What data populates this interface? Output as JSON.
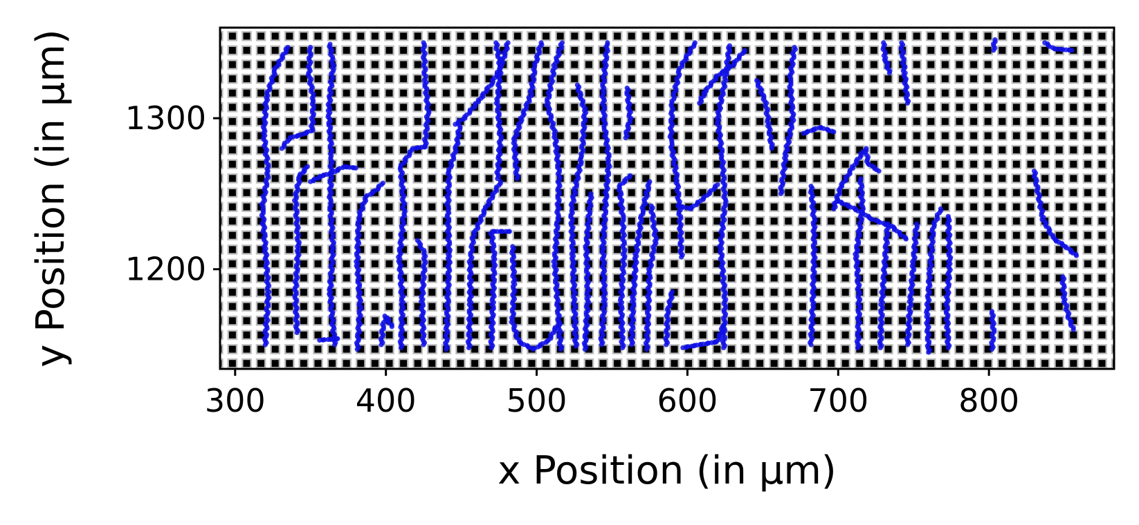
{
  "chart_data": {
    "type": "scatter",
    "xlabel": "x Position (in μm)",
    "ylabel": "y Position (in μm)",
    "xlim": [
      290,
      883
    ],
    "ylim": [
      1134,
      1360
    ],
    "xticks": [
      300,
      400,
      500,
      600,
      700,
      800
    ],
    "yticks": [
      1200,
      1300
    ],
    "grid": false,
    "background": "regular square pillar lattice image (black squares on white, ~10 μm pitch)",
    "marker_color": "#1010e6",
    "frame_color": "#000000",
    "series": [
      {
        "trajectories": [
          [
            [
              320,
              1150
            ],
            [
              322,
              1185
            ],
            [
              320,
              1215
            ],
            [
              318,
              1240
            ],
            [
              322,
              1265
            ],
            [
              319,
              1290
            ],
            [
              321,
              1315
            ],
            [
              327,
              1333
            ],
            [
              335,
              1347
            ]
          ],
          [
            [
              341,
              1158
            ],
            [
              340,
              1185
            ],
            [
              342,
              1215
            ],
            [
              340,
              1247
            ],
            [
              343,
              1262
            ],
            [
              348,
              1268
            ]
          ],
          [
            [
              331,
              1280
            ],
            [
              336,
              1287
            ],
            [
              344,
              1289
            ],
            [
              351,
              1292
            ],
            [
              352,
              1312
            ],
            [
              349,
              1330
            ],
            [
              350,
              1347
            ]
          ],
          [
            [
              366,
              1150
            ],
            [
              363,
              1185
            ],
            [
              365,
              1215
            ],
            [
              363,
              1245
            ],
            [
              364,
              1275
            ],
            [
              362,
              1305
            ],
            [
              365,
              1335
            ],
            [
              363,
              1349
            ]
          ],
          [
            [
              356,
              1153
            ],
            [
              368,
              1154
            ]
          ],
          [
            [
              350,
              1258
            ],
            [
              358,
              1262
            ],
            [
              365,
              1264
            ],
            [
              372,
              1268
            ],
            [
              380,
              1267
            ]
          ],
          [
            [
              381,
              1147
            ],
            [
              383,
              1175
            ],
            [
              381,
              1205
            ],
            [
              382,
              1235
            ],
            [
              387,
              1248
            ],
            [
              393,
              1252
            ],
            [
              398,
              1257
            ]
          ],
          [
            [
              397,
              1150
            ],
            [
              398,
              1162
            ],
            [
              400,
              1169
            ],
            [
              404,
              1162
            ]
          ],
          [
            [
              410,
              1148
            ],
            [
              411,
              1178
            ],
            [
              409,
              1208
            ],
            [
              412,
              1238
            ],
            [
              410,
              1268
            ],
            [
              418,
              1280
            ],
            [
              426,
              1281
            ]
          ],
          [
            [
              425,
              1150
            ],
            [
              424,
              1180
            ],
            [
              426,
              1210
            ],
            [
              421,
              1219
            ]
          ],
          [
            [
              426,
              1282
            ],
            [
              428,
              1305
            ],
            [
              426,
              1325
            ],
            [
              425,
              1350
            ]
          ],
          [
            [
              440,
              1147
            ],
            [
              441,
              1180
            ],
            [
              442,
              1210
            ],
            [
              441,
              1240
            ],
            [
              442,
              1265
            ],
            [
              447,
              1282
            ],
            [
              449,
              1295
            ]
          ],
          [
            [
              455,
              1148
            ],
            [
              456,
              1178
            ],
            [
              456,
              1205
            ],
            [
              458,
              1222
            ],
            [
              466,
              1240
            ],
            [
              476,
              1258
            ]
          ],
          [
            [
              446,
              1296
            ],
            [
              452,
              1300
            ],
            [
              462,
              1312
            ],
            [
              470,
              1323
            ],
            [
              476,
              1333
            ],
            [
              481,
              1350
            ]
          ],
          [
            [
              470,
              1148
            ],
            [
              471,
              1178
            ],
            [
              472,
              1208
            ],
            [
              470,
              1225
            ],
            [
              482,
              1225
            ]
          ],
          [
            [
              473,
              1350
            ],
            [
              476,
              1334
            ],
            [
              474,
              1310
            ],
            [
              476,
              1287
            ],
            [
              474,
              1260
            ]
          ],
          [
            [
              484,
              1215
            ],
            [
              485,
              1190
            ],
            [
              484,
              1165
            ],
            [
              488,
              1152
            ],
            [
              498,
              1147
            ],
            [
              508,
              1153
            ],
            [
              515,
              1165
            ]
          ],
          [
            [
              487,
              1260
            ],
            [
              485,
              1285
            ],
            [
              490,
              1300
            ],
            [
              496,
              1315
            ],
            [
              499,
              1335
            ],
            [
              503,
              1350
            ]
          ],
          [
            [
              516,
              1147
            ],
            [
              514,
              1175
            ],
            [
              512,
              1205
            ],
            [
              514,
              1235
            ],
            [
              515,
              1262
            ],
            [
              512,
              1290
            ],
            [
              507,
              1310
            ],
            [
              512,
              1335
            ],
            [
              517,
              1350
            ]
          ],
          [
            [
              526,
              1149
            ],
            [
              525,
              1180
            ],
            [
              524,
              1210
            ],
            [
              523,
              1240
            ],
            [
              530,
              1275
            ],
            [
              532,
              1305
            ],
            [
              527,
              1322
            ]
          ],
          [
            [
              532,
              1147
            ],
            [
              534,
              1182
            ],
            [
              533,
              1215
            ],
            [
              536,
              1250
            ]
          ],
          [
            [
              543,
              1150
            ],
            [
              545,
              1180
            ],
            [
              544,
              1215
            ],
            [
              546,
              1248
            ],
            [
              548,
              1272
            ],
            [
              545,
              1295
            ],
            [
              544,
              1320
            ],
            [
              547,
              1350
            ]
          ],
          [
            [
              557,
              1148
            ],
            [
              556,
              1178
            ],
            [
              558,
              1210
            ],
            [
              557,
              1235
            ],
            [
              555,
              1255
            ],
            [
              562,
              1262
            ]
          ],
          [
            [
              563,
              1150
            ],
            [
              564,
              1180
            ],
            [
              566,
              1210
            ],
            [
              570,
              1238
            ],
            [
              575,
              1258
            ]
          ],
          [
            [
              559,
              1287
            ],
            [
              562,
              1300
            ],
            [
              560,
              1320
            ]
          ],
          [
            [
              573,
              1147
            ],
            [
              574,
              1175
            ],
            [
              575,
              1200
            ],
            [
              579,
              1220
            ],
            [
              576,
              1242
            ]
          ],
          [
            [
              586,
              1150
            ],
            [
              587,
              1172
            ],
            [
              590,
              1185
            ]
          ],
          [
            [
              597,
              1148
            ],
            [
              608,
              1150
            ],
            [
              620,
              1152
            ],
            [
              624,
              1163
            ]
          ],
          [
            [
              624,
              1148
            ],
            [
              625,
              1180
            ],
            [
              622,
              1215
            ],
            [
              625,
              1245
            ],
            [
              623,
              1275
            ],
            [
              620,
              1300
            ],
            [
              625,
              1325
            ],
            [
              628,
              1348
            ]
          ],
          [
            [
              596,
              1208
            ],
            [
              595,
              1235
            ],
            [
              593,
              1260
            ],
            [
              589,
              1285
            ],
            [
              590,
              1310
            ],
            [
              595,
              1333
            ],
            [
              605,
              1350
            ]
          ],
          [
            [
              594,
              1242
            ],
            [
              602,
              1240
            ],
            [
              612,
              1248
            ],
            [
              620,
              1256
            ]
          ],
          [
            [
              608,
              1310
            ],
            [
              612,
              1318
            ],
            [
              620,
              1328
            ],
            [
              630,
              1335
            ],
            [
              638,
              1345
            ]
          ],
          [
            [
              646,
              1325
            ],
            [
              652,
              1310
            ],
            [
              654,
              1295
            ],
            [
              656,
              1280
            ]
          ],
          [
            [
              662,
              1250
            ],
            [
              665,
              1275
            ],
            [
              670,
              1300
            ],
            [
              668,
              1325
            ],
            [
              671,
              1347
            ]
          ],
          [
            [
              682,
              1255
            ],
            [
              684,
              1232
            ],
            [
              684,
              1205
            ],
            [
              683,
              1175
            ],
            [
              682,
              1150
            ]
          ],
          [
            [
              677,
              1290
            ],
            [
              688,
              1294
            ],
            [
              697,
              1291
            ]
          ],
          [
            [
              697,
              1240
            ],
            [
              702,
              1255
            ],
            [
              710,
              1268
            ],
            [
              718,
              1280
            ],
            [
              720,
              1270
            ],
            [
              727,
              1265
            ]
          ],
          [
            [
              700,
              1245
            ],
            [
              711,
              1240
            ],
            [
              723,
              1233
            ],
            [
              736,
              1228
            ],
            [
              745,
              1220
            ]
          ],
          [
            [
              713,
              1148
            ],
            [
              714,
              1180
            ],
            [
              712,
              1210
            ],
            [
              716,
              1240
            ],
            [
              715,
              1260
            ]
          ],
          [
            [
              728,
              1148
            ],
            [
              729,
              1178
            ],
            [
              731,
              1205
            ],
            [
              733,
              1230
            ]
          ],
          [
            [
              730,
              1350
            ],
            [
              731,
              1340
            ],
            [
              734,
              1330
            ]
          ],
          [
            [
              742,
              1350
            ],
            [
              744,
              1330
            ],
            [
              746,
              1310
            ]
          ],
          [
            [
              746,
              1150
            ],
            [
              748,
              1180
            ],
            [
              750,
              1205
            ],
            [
              752,
              1230
            ]
          ],
          [
            [
              760,
              1145
            ],
            [
              759,
              1170
            ],
            [
              761,
              1200
            ],
            [
              763,
              1228
            ],
            [
              768,
              1240
            ]
          ],
          [
            [
              773,
              1148
            ],
            [
              772,
              1175
            ],
            [
              774,
              1205
            ],
            [
              773,
              1235
            ]
          ],
          [
            [
              802,
              1147
            ],
            [
              803,
              1160
            ],
            [
              802,
              1172
            ]
          ],
          [
            [
              803,
              1345
            ],
            [
              804,
              1352
            ]
          ],
          [
            [
              830,
              1265
            ],
            [
              833,
              1248
            ],
            [
              836,
              1233
            ],
            [
              843,
              1220
            ],
            [
              851,
              1215
            ],
            [
              858,
              1209
            ]
          ],
          [
            [
              837,
              1350
            ],
            [
              843,
              1346
            ],
            [
              855,
              1345
            ]
          ],
          [
            [
              849,
              1195
            ],
            [
              850,
              1180
            ],
            [
              853,
              1168
            ],
            [
              856,
              1160
            ]
          ]
        ]
      }
    ]
  }
}
